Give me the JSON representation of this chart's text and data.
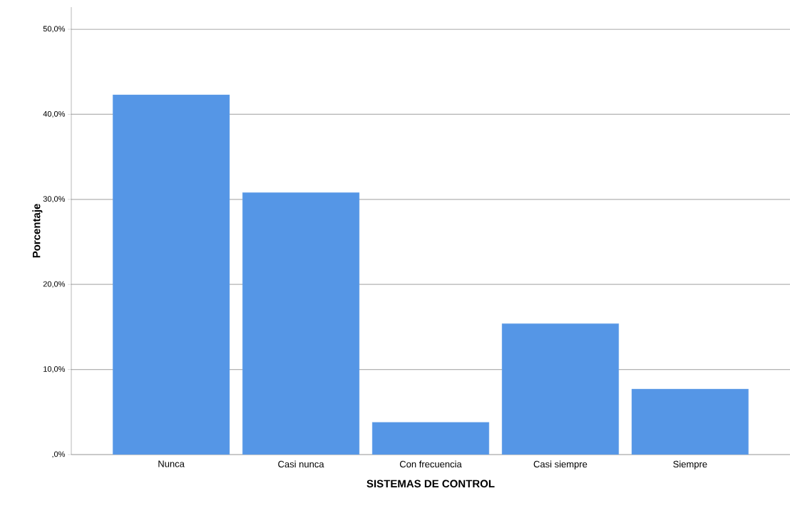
{
  "chart_data": {
    "type": "bar",
    "xlabel": "SISTEMAS DE CONTROL",
    "ylabel": "Porcentaje",
    "categories": [
      "Nunca",
      "Casi nunca",
      "Con frecuencia",
      "Casi siempre",
      "Siempre"
    ],
    "values": [
      42.3,
      30.8,
      3.8,
      15.4,
      7.7
    ],
    "color": "#5596e6",
    "ylim": [
      0,
      52.6
    ],
    "yticks": [
      {
        "value": 0,
        "label": ",0%"
      },
      {
        "value": 10,
        "label": "10,0%"
      },
      {
        "value": 20,
        "label": "20,0%"
      },
      {
        "value": 30,
        "label": "30,0%"
      },
      {
        "value": 40,
        "label": "40,0%"
      },
      {
        "value": 50,
        "label": "50,0%"
      }
    ],
    "grid": "y"
  }
}
